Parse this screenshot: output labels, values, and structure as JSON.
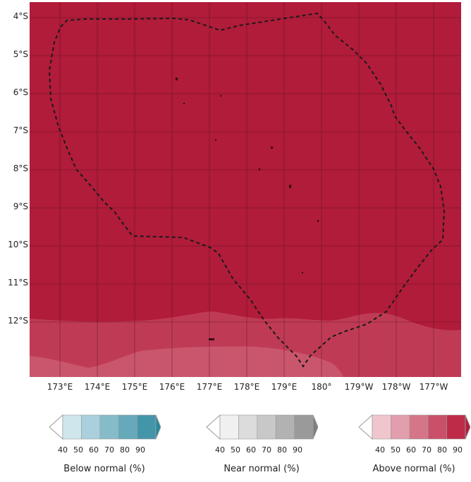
{
  "map": {
    "lat_labels": [
      "4°S",
      "5°S",
      "6°S",
      "7°S",
      "8°S",
      "9°S",
      "10°S",
      "11°S",
      "12°S"
    ],
    "lon_labels": [
      "173°E",
      "174°E",
      "175°E",
      "176°E",
      "177°E",
      "178°E",
      "179°E",
      "180°",
      "179°W",
      "178°W",
      "177°W"
    ],
    "colors": {
      "above_90": "#b01c3a",
      "above_80": "#c23f58",
      "above_70": "#c95870",
      "grid": "#5a0f1e",
      "boundary": "#1a1a1a"
    }
  },
  "legends": [
    {
      "caption": "Below normal (%)",
      "ticks": [
        "40",
        "50",
        "60",
        "70",
        "80",
        "90"
      ],
      "colors": [
        "#cfe6ec",
        "#a9d0dc",
        "#86bcca",
        "#65a9ba",
        "#4396aa",
        "#218b9f"
      ]
    },
    {
      "caption": "Near normal (%)",
      "ticks": [
        "40",
        "50",
        "60",
        "70",
        "80",
        "90"
      ],
      "colors": [
        "#f0f0f0",
        "#dcdcdc",
        "#c8c8c8",
        "#b2b2b2",
        "#9a9a9a",
        "#7e7e7e"
      ]
    },
    {
      "caption": "Above normal (%)",
      "ticks": [
        "40",
        "50",
        "60",
        "70",
        "80",
        "90"
      ],
      "colors": [
        "#f0c6ce",
        "#e29eac",
        "#d57688",
        "#c95068",
        "#bd2b48",
        "#b01c3a"
      ]
    }
  ]
}
